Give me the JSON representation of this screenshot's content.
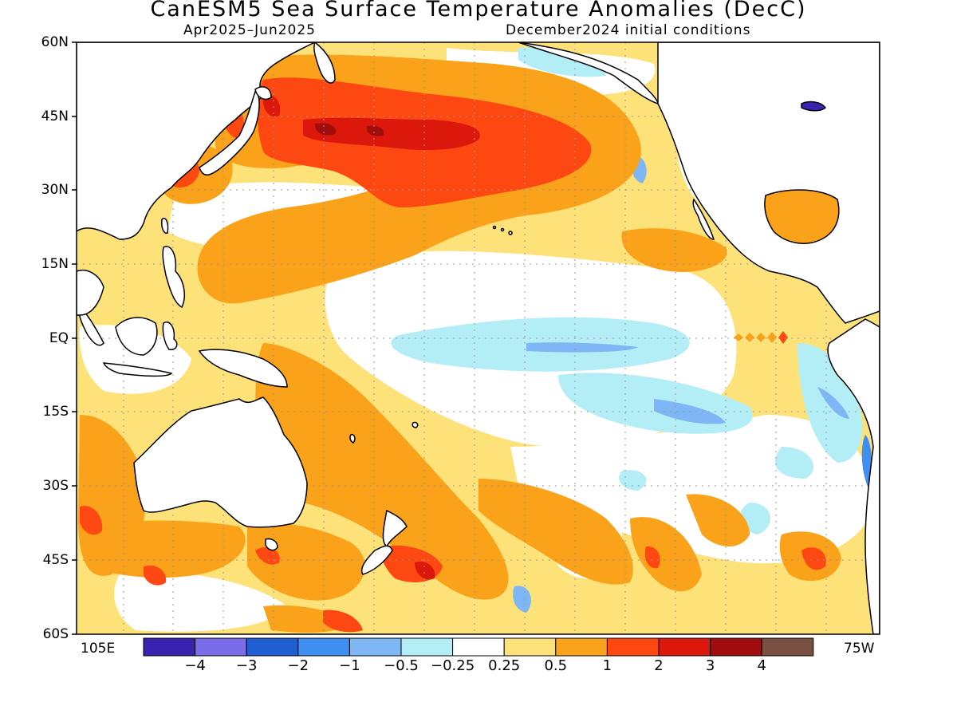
{
  "title": "CanESM5 Sea Surface Temperature Anomalies (DecC)",
  "subtitle_left": "Apr2025–Jun2025",
  "subtitle_right": "December2024 initial conditions",
  "lat_labels": [
    "60N",
    "45N",
    "30N",
    "15N",
    "EQ",
    "15S",
    "30S",
    "45S",
    "60S"
  ],
  "lon_labels": {
    "left": "105E",
    "right": "75W"
  },
  "colorbar": {
    "colors": [
      "#3a22b0",
      "#7b6cea",
      "#1f5fd1",
      "#3f8ef2",
      "#7fb6f5",
      "#b3eef6",
      "#ffffff",
      "#fde27a",
      "#fba21b",
      "#fe4811",
      "#dc180d",
      "#a10c0c",
      "#7a5043"
    ],
    "ticks": [
      "−4",
      "−3",
      "−2",
      "−1",
      "−0.5",
      "−0.25",
      "0.25",
      "0.5",
      "1",
      "2",
      "3",
      "4"
    ]
  }
}
